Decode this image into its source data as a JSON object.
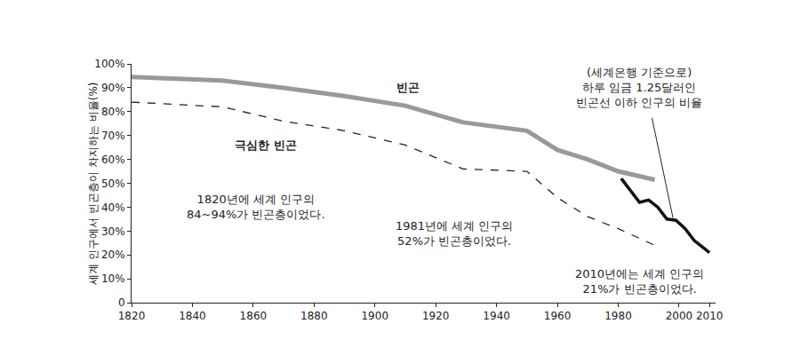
{
  "chart_data": {
    "type": "line",
    "y_label": "세계 인구에서 빈곤층이 차지하는 비율(%)",
    "xlim": [
      1820,
      2012
    ],
    "xticks": [
      1820,
      1840,
      1860,
      1880,
      1900,
      1920,
      1940,
      1960,
      1980,
      2000,
      2010
    ],
    "ylim": [
      0,
      100
    ],
    "yticks": [
      0,
      {
        "value": 10,
        "label": "10%"
      },
      {
        "value": 20,
        "label": "20%"
      },
      {
        "value": 30,
        "label": "30%"
      },
      {
        "value": 40,
        "label": "40%"
      },
      {
        "value": 50,
        "label": "50%"
      },
      {
        "value": 60,
        "label": "60%"
      },
      {
        "value": 70,
        "label": "70%"
      },
      {
        "value": 80,
        "label": "80%"
      },
      {
        "value": 90,
        "label": "90%"
      },
      {
        "value": 100,
        "label": "100%"
      }
    ],
    "grid": false,
    "series": [
      {
        "color": "#999999",
        "line_style": "solid",
        "x": [
          1820,
          1850,
          1870,
          1890,
          1910,
          1929,
          1950,
          1960,
          1970,
          1980,
          1992
        ],
        "values": [
          94.5,
          93,
          90,
          86.5,
          82.5,
          75.5,
          72,
          64,
          60,
          55,
          51.5
        ]
      },
      {
        "color": "#222222",
        "line_style": "dash",
        "x": [
          1820,
          1850,
          1870,
          1890,
          1910,
          1929,
          1950,
          1960,
          1970,
          1980,
          1992
        ],
        "values": [
          84,
          82,
          76,
          72,
          66,
          56,
          55,
          44,
          36,
          31,
          24
        ]
      },
      {
        "color": "#111111",
        "line_style": "solid",
        "x": [
          1981,
          1984,
          1987,
          1990,
          1993,
          1996,
          1999,
          2002,
          2005,
          2008,
          2010
        ],
        "values": [
          52,
          47,
          42,
          43,
          40,
          35,
          34.5,
          31,
          26,
          23,
          21
        ]
      }
    ],
    "annotations": [
      {
        "text": "빈곤",
        "x": 1911,
        "y": 90
      },
      {
        "text": "극심한 빈곤",
        "x": 1864,
        "y": 66
      },
      {
        "text": "1820년에 세계 인구의\n84~94%가 빈곤층이었다.",
        "x": 1861,
        "y": 40
      },
      {
        "text": "1981년에 세계 인구의\n52%가 빈곤층이었다.",
        "x": 1926,
        "y": 29
      },
      {
        "text": "2010년에는 세계 인구의\n21%가 빈곤층이었다.",
        "x": 1987,
        "y": 9
      },
      {
        "text": "(세계은행 기준으로)\n하루 임금 1.25달러인\n빈곤선 이하 인구의 비율",
        "x": 1987,
        "y": 90,
        "arrow_to": [
          1998,
          35.5
        ]
      }
    ]
  }
}
